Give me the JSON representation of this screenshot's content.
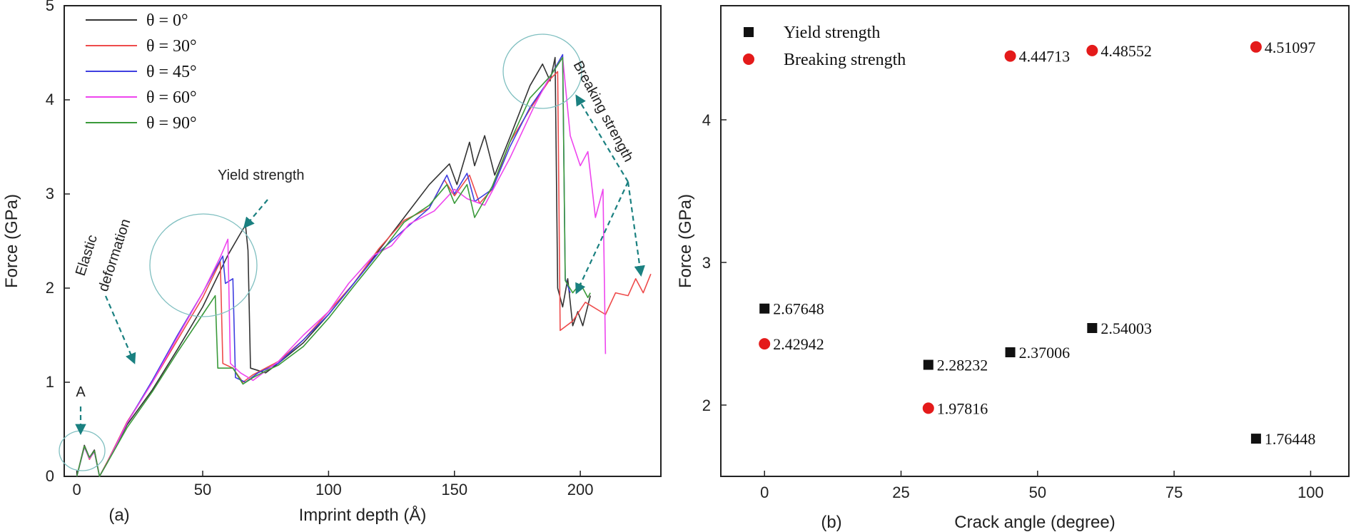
{
  "chart_data": [
    {
      "type": "line",
      "panel_label": "(a)",
      "xlabel": "Imprint depth (Å)",
      "ylabel": "Force (GPa)",
      "xlim": [
        -5,
        232
      ],
      "ylim": [
        0,
        5
      ],
      "xticks": [
        0,
        50,
        100,
        150,
        200
      ],
      "yticks": [
        0,
        1,
        2,
        3,
        4,
        5
      ],
      "legend_position": "top-left",
      "series": [
        {
          "name": "θ = 0°",
          "color": "#333333",
          "points": [
            [
              0,
              0
            ],
            [
              3,
              0.33
            ],
            [
              5,
              0.2
            ],
            [
              7,
              0.28
            ],
            [
              9,
              0
            ],
            [
              12,
              0.15
            ],
            [
              20,
              0.55
            ],
            [
              30,
              0.92
            ],
            [
              40,
              1.35
            ],
            [
              50,
              1.8
            ],
            [
              60,
              2.35
            ],
            [
              65,
              2.58
            ],
            [
              67,
              2.67
            ],
            [
              68,
              2.4
            ],
            [
              69,
              1.15
            ],
            [
              75,
              1.1
            ],
            [
              80,
              1.2
            ],
            [
              90,
              1.42
            ],
            [
              100,
              1.72
            ],
            [
              110,
              2.05
            ],
            [
              120,
              2.4
            ],
            [
              130,
              2.75
            ],
            [
              140,
              3.1
            ],
            [
              148,
              3.32
            ],
            [
              151,
              3.1
            ],
            [
              156,
              3.55
            ],
            [
              158,
              3.3
            ],
            [
              162,
              3.62
            ],
            [
              166,
              3.2
            ],
            [
              172,
              3.6
            ],
            [
              180,
              4.15
            ],
            [
              185,
              4.38
            ],
            [
              188,
              4.2
            ],
            [
              190,
              4.45
            ],
            [
              191,
              2.0
            ],
            [
              193,
              1.8
            ],
            [
              195,
              2.1
            ],
            [
              197,
              1.6
            ],
            [
              199,
              1.75
            ],
            [
              201,
              1.6
            ],
            [
              204,
              1.92
            ]
          ]
        },
        {
          "name": "θ = 30°",
          "color": "#ee4b4b",
          "points": [
            [
              0,
              0
            ],
            [
              3,
              0.32
            ],
            [
              5,
              0.18
            ],
            [
              7,
              0.27
            ],
            [
              9,
              0
            ],
            [
              12,
              0.15
            ],
            [
              20,
              0.58
            ],
            [
              30,
              1.0
            ],
            [
              40,
              1.45
            ],
            [
              50,
              1.9
            ],
            [
              57,
              2.28
            ],
            [
              58,
              1.2
            ],
            [
              62,
              1.15
            ],
            [
              66,
              1.0
            ],
            [
              70,
              1.08
            ],
            [
              75,
              1.15
            ],
            [
              80,
              1.22
            ],
            [
              90,
              1.45
            ],
            [
              100,
              1.75
            ],
            [
              110,
              2.05
            ],
            [
              120,
              2.42
            ],
            [
              130,
              2.72
            ],
            [
              140,
              2.85
            ],
            [
              146,
              3.15
            ],
            [
              150,
              2.98
            ],
            [
              156,
              3.2
            ],
            [
              160,
              2.9
            ],
            [
              165,
              3.05
            ],
            [
              172,
              3.55
            ],
            [
              180,
              3.9
            ],
            [
              188,
              4.22
            ],
            [
              191,
              4.3
            ],
            [
              192,
              1.55
            ],
            [
              197,
              1.65
            ],
            [
              202,
              1.85
            ],
            [
              210,
              1.72
            ],
            [
              214,
              1.95
            ],
            [
              219,
              1.92
            ],
            [
              222,
              2.1
            ],
            [
              225,
              1.95
            ],
            [
              228,
              2.15
            ]
          ]
        },
        {
          "name": "θ = 45°",
          "color": "#3f3fe0",
          "points": [
            [
              0,
              0
            ],
            [
              3,
              0.31
            ],
            [
              5,
              0.19
            ],
            [
              7,
              0.26
            ],
            [
              9,
              0
            ],
            [
              12,
              0.14
            ],
            [
              20,
              0.57
            ],
            [
              30,
              1.02
            ],
            [
              40,
              1.5
            ],
            [
              50,
              1.95
            ],
            [
              55,
              2.2
            ],
            [
              58,
              2.34
            ],
            [
              59,
              2.05
            ],
            [
              62,
              2.1
            ],
            [
              63,
              1.05
            ],
            [
              67,
              1.0
            ],
            [
              72,
              1.1
            ],
            [
              80,
              1.2
            ],
            [
              90,
              1.45
            ],
            [
              100,
              1.72
            ],
            [
              110,
              2.05
            ],
            [
              120,
              2.38
            ],
            [
              130,
              2.62
            ],
            [
              140,
              2.85
            ],
            [
              147,
              3.2
            ],
            [
              150,
              3.0
            ],
            [
              155,
              3.22
            ],
            [
              158,
              2.92
            ],
            [
              165,
              3.05
            ],
            [
              172,
              3.5
            ],
            [
              180,
              3.92
            ],
            [
              186,
              4.15
            ],
            [
              193,
              4.48
            ],
            [
              194,
              2.1
            ],
            [
              196,
              1.95
            ]
          ]
        },
        {
          "name": "θ = 60°",
          "color": "#ee45ee",
          "points": [
            [
              0,
              0
            ],
            [
              3,
              0.31
            ],
            [
              5,
              0.19
            ],
            [
              7,
              0.26
            ],
            [
              9,
              0
            ],
            [
              12,
              0.14
            ],
            [
              20,
              0.57
            ],
            [
              30,
              1.0
            ],
            [
              40,
              1.48
            ],
            [
              50,
              1.95
            ],
            [
              57,
              2.33
            ],
            [
              60,
              2.52
            ],
            [
              61,
              1.2
            ],
            [
              65,
              1.1
            ],
            [
              70,
              1.02
            ],
            [
              75,
              1.12
            ],
            [
              80,
              1.22
            ],
            [
              90,
              1.5
            ],
            [
              100,
              1.75
            ],
            [
              108,
              2.05
            ],
            [
              118,
              2.35
            ],
            [
              125,
              2.45
            ],
            [
              132,
              2.68
            ],
            [
              142,
              2.82
            ],
            [
              150,
              3.05
            ],
            [
              155,
              2.95
            ],
            [
              162,
              2.88
            ],
            [
              172,
              3.38
            ],
            [
              182,
              3.95
            ],
            [
              188,
              4.25
            ],
            [
              193,
              4.45
            ],
            [
              196,
              3.62
            ],
            [
              200,
              3.3
            ],
            [
              203,
              3.45
            ],
            [
              206,
              2.75
            ],
            [
              209,
              3.05
            ],
            [
              210,
              1.3
            ]
          ]
        },
        {
          "name": "θ = 90°",
          "color": "#3a9a3a",
          "points": [
            [
              0,
              0
            ],
            [
              3,
              0.32
            ],
            [
              5,
              0.2
            ],
            [
              7,
              0.27
            ],
            [
              9,
              0
            ],
            [
              12,
              0.14
            ],
            [
              20,
              0.52
            ],
            [
              30,
              0.9
            ],
            [
              40,
              1.32
            ],
            [
              50,
              1.72
            ],
            [
              55,
              1.92
            ],
            [
              56,
              1.15
            ],
            [
              62,
              1.15
            ],
            [
              66,
              0.98
            ],
            [
              70,
              1.05
            ],
            [
              75,
              1.12
            ],
            [
              80,
              1.18
            ],
            [
              90,
              1.38
            ],
            [
              100,
              1.68
            ],
            [
              110,
              2.02
            ],
            [
              120,
              2.35
            ],
            [
              130,
              2.7
            ],
            [
              140,
              2.88
            ],
            [
              147,
              3.1
            ],
            [
              150,
              2.9
            ],
            [
              155,
              3.1
            ],
            [
              158,
              2.75
            ],
            [
              165,
              3.08
            ],
            [
              172,
              3.55
            ],
            [
              180,
              4.02
            ],
            [
              188,
              4.25
            ],
            [
              193,
              4.45
            ],
            [
              194,
              2.08
            ],
            [
              197,
              1.95
            ],
            [
              200,
              2.05
            ],
            [
              203,
              1.9
            ],
            [
              204,
              1.95
            ]
          ]
        }
      ],
      "annotations": [
        {
          "text": "A",
          "x": 7,
          "y": 0.95
        },
        {
          "text": "Elastic deformation",
          "x": 14,
          "y": 2.2
        },
        {
          "text": "Yield strength",
          "x": 72,
          "y": 3.15
        },
        {
          "text": "Breaking strength",
          "x": 212,
          "y": 4.1
        }
      ]
    },
    {
      "type": "scatter",
      "panel_label": "(b)",
      "xlabel": "Crack angle (degree)",
      "ylabel": "Force (GPa)",
      "xlim": [
        -8,
        107
      ],
      "ylim": [
        1.5,
        4.8
      ],
      "xticks": [
        0,
        25,
        50,
        75,
        100
      ],
      "yticks": [
        2,
        3,
        4
      ],
      "legend_position": "top-left",
      "series": [
        {
          "name": "Yield strength",
          "marker": "square",
          "color": "#111111",
          "points": [
            [
              0,
              2.67648
            ],
            [
              30,
              2.28232
            ],
            [
              45,
              2.37006
            ],
            [
              60,
              2.54003
            ],
            [
              90,
              1.76448
            ]
          ],
          "labels": [
            "2.67648",
            "2.28232",
            "2.37006",
            "2.54003",
            "1.76448"
          ]
        },
        {
          "name": "Breaking strength",
          "marker": "circle",
          "color": "#e41a1a",
          "points": [
            [
              0,
              2.42942
            ],
            [
              30,
              1.97816
            ],
            [
              45,
              4.44713
            ],
            [
              60,
              4.48552
            ],
            [
              90,
              4.51097
            ]
          ],
          "labels": [
            "2.42942",
            "1.97816",
            "4.44713",
            "4.48552",
            "4.51097"
          ]
        }
      ]
    }
  ]
}
